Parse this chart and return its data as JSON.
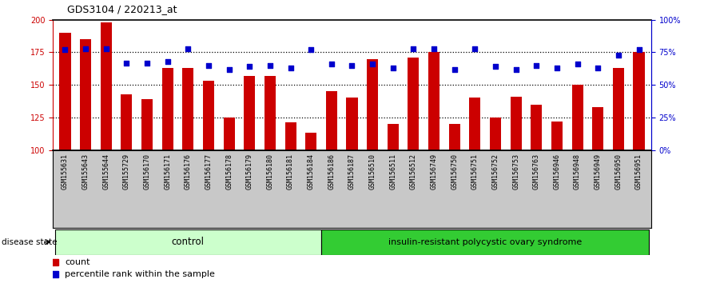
{
  "title": "GDS3104 / 220213_at",
  "samples": [
    "GSM155631",
    "GSM155643",
    "GSM155644",
    "GSM155729",
    "GSM156170",
    "GSM156171",
    "GSM156176",
    "GSM156177",
    "GSM156178",
    "GSM156179",
    "GSM156180",
    "GSM156181",
    "GSM156184",
    "GSM156186",
    "GSM156187",
    "GSM156510",
    "GSM156511",
    "GSM156512",
    "GSM156749",
    "GSM156750",
    "GSM156751",
    "GSM156752",
    "GSM156753",
    "GSM156763",
    "GSM156946",
    "GSM156948",
    "GSM156949",
    "GSM156950",
    "GSM156951"
  ],
  "counts": [
    190,
    185,
    198,
    143,
    139,
    163,
    163,
    153,
    125,
    157,
    157,
    121,
    113,
    145,
    140,
    170,
    120,
    171,
    175,
    120,
    140,
    125,
    141,
    135,
    122,
    150,
    133,
    163,
    175
  ],
  "percentiles": [
    77,
    78,
    78,
    67,
    67,
    68,
    78,
    65,
    62,
    64,
    65,
    63,
    77,
    66,
    65,
    66,
    63,
    78,
    78,
    62,
    78,
    64,
    62,
    65,
    63,
    66,
    63,
    73,
    77
  ],
  "control_count": 13,
  "disease_count": 16,
  "ylim_left": [
    100,
    200
  ],
  "ylim_right": [
    0,
    100
  ],
  "yticks_left": [
    100,
    125,
    150,
    175,
    200
  ],
  "yticks_right": [
    0,
    25,
    50,
    75,
    100
  ],
  "bar_color": "#cc0000",
  "scatter_color": "#0000cc",
  "control_label": "control",
  "disease_label": "insulin-resistant polycystic ovary syndrome",
  "control_bg": "#ccffcc",
  "disease_bg": "#33cc33",
  "xtick_bg": "#c8c8c8",
  "bar_bottom": 100,
  "legend_count_label": "count",
  "legend_pct_label": "percentile rank within the sample",
  "disease_state_label": "disease state",
  "dotted_lines": [
    125,
    150,
    175
  ],
  "title_fontsize": 9,
  "tick_fontsize": 7,
  "sample_fontsize": 6,
  "legend_fontsize": 8
}
